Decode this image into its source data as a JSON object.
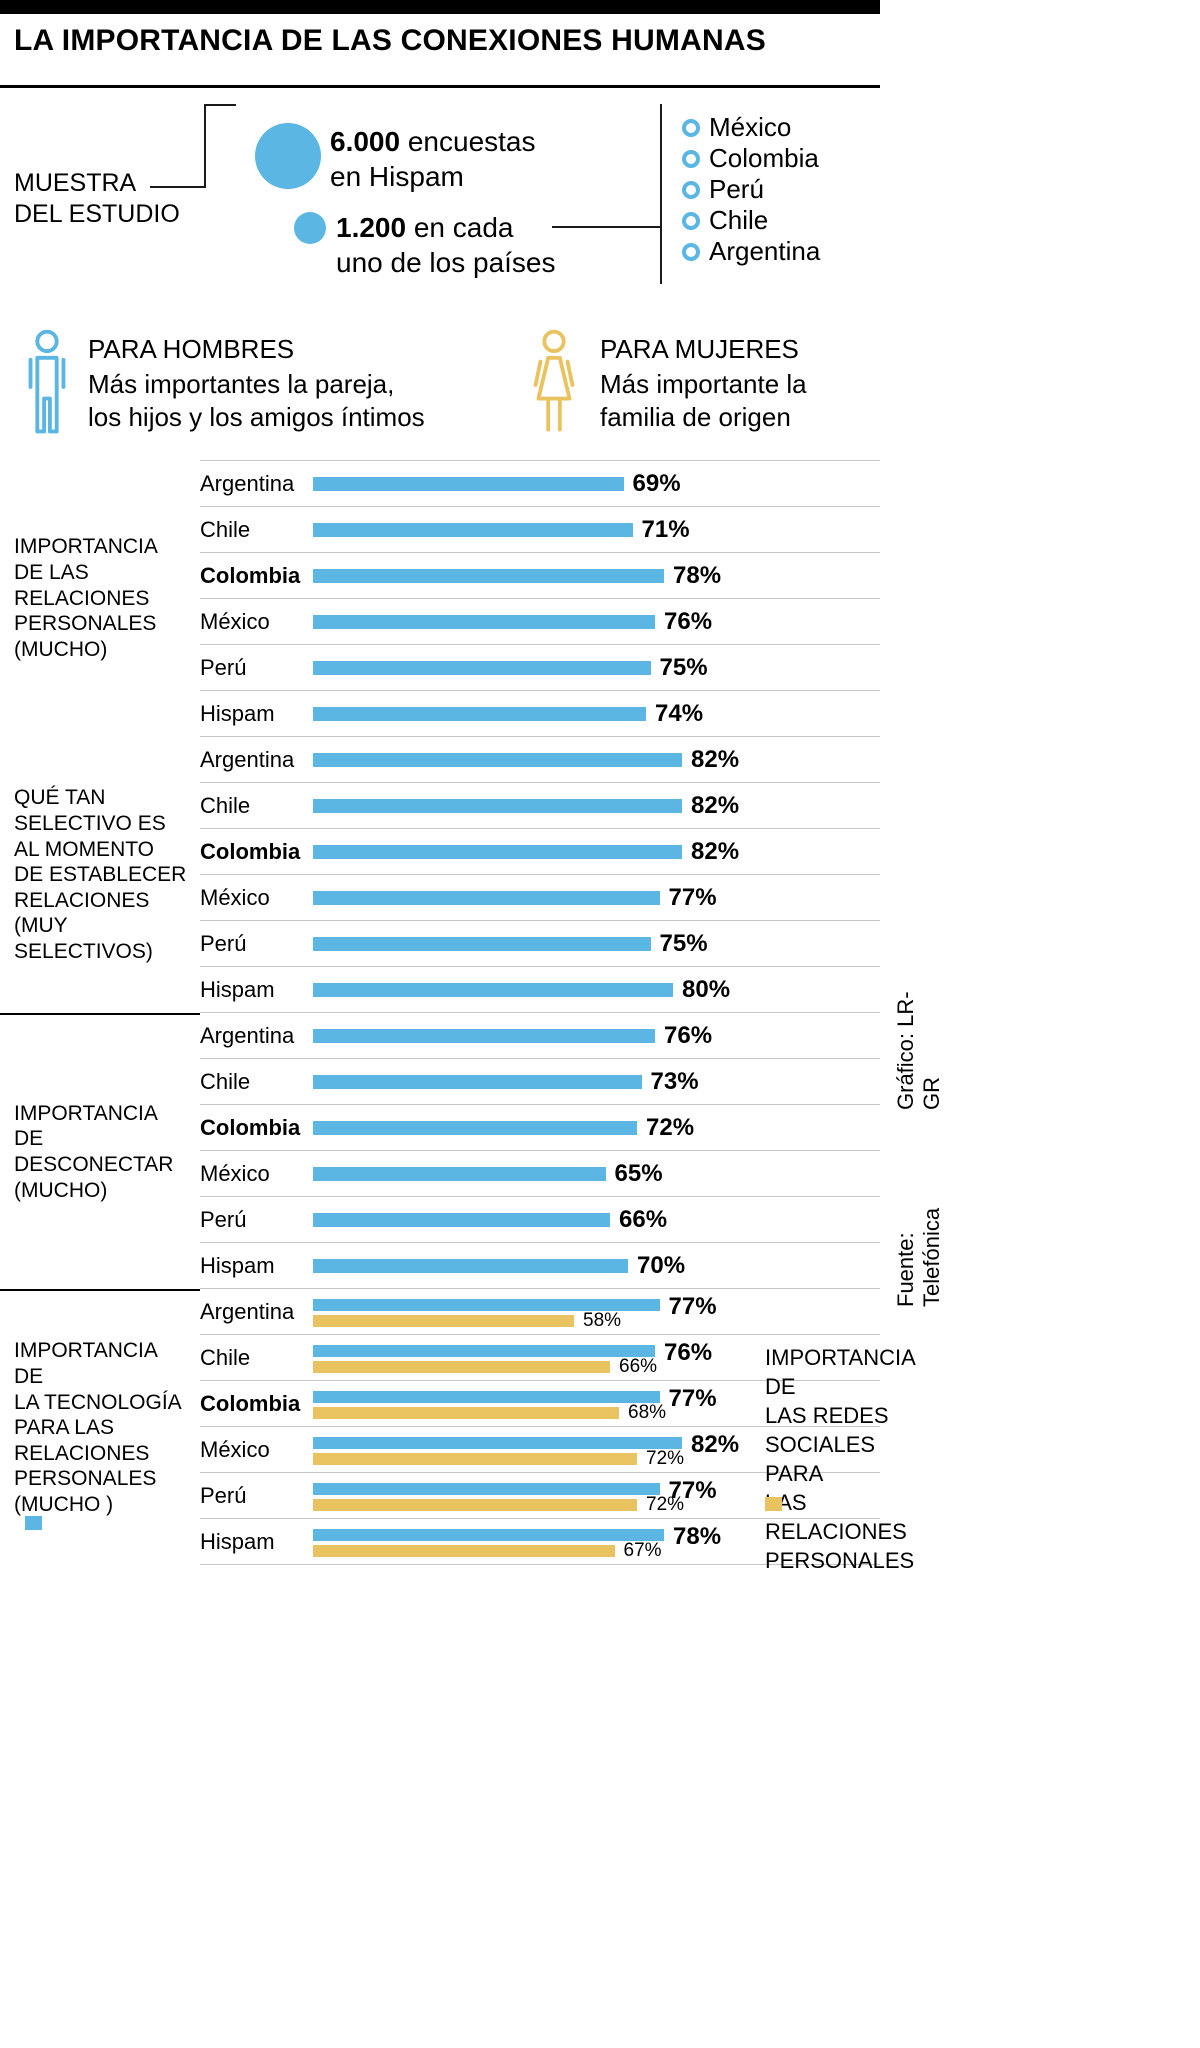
{
  "colors": {
    "blue": "#5bb6e4",
    "yellow": "#e8c35f"
  },
  "header": {
    "title": "LA IMPORTANCIA DE LAS CONEXIONES HUMANAS"
  },
  "sample": {
    "label": "MUESTRA\nDEL ESTUDIO",
    "stat1_value": "6.000",
    "stat1_text": " encuestas\nen Hispam",
    "stat2_value": "1.200",
    "stat2_text": " en cada\nuno de los países",
    "countries": [
      "México",
      "Colombia",
      "Perú",
      "Chile",
      "Argentina"
    ]
  },
  "gender": {
    "men_title": "PARA HOMBRES",
    "men_desc": "Más importantes la pareja,\nlos hijos y los amigos íntimos",
    "women_title": "PARA MUJERES",
    "women_desc": "Más importante la\nfamilia de origen"
  },
  "chart_data": {
    "type": "bar",
    "orientation": "horizontal",
    "unit": "%",
    "xlim": [
      0,
      100
    ],
    "bar_color": "#5bb6e4",
    "secondary_bar_color": "#e8c35f",
    "categories": [
      "Argentina",
      "Chile",
      "Colombia",
      "México",
      "Perú",
      "Hispam"
    ],
    "emphasized_category": "Colombia",
    "groups": [
      {
        "label": "IMPORTANCIA\nDE LAS\nRELACIONES\nPERSONALES\n(MUCHO)",
        "values": [
          69,
          71,
          78,
          76,
          75,
          74
        ]
      },
      {
        "label": "QUÉ TAN\nSELECTIVO ES\nAL MOMENTO\nDE ESTABLECER\nRELACIONES\n(MUY\nSELECTIVOS)",
        "values": [
          82,
          82,
          82,
          77,
          75,
          80
        ]
      },
      {
        "label": "IMPORTANCIA DE\nDESCONECTAR\n(MUCHO)",
        "values": [
          76,
          73,
          72,
          65,
          66,
          70
        ]
      },
      {
        "label": "IMPORTANCIA DE\nLA TECNOLOGÍA\nPARA LAS\nRELACIONES\nPERSONALES\n(MUCHO )",
        "values": [
          77,
          76,
          77,
          82,
          77,
          78
        ],
        "secondary_values": [
          58,
          66,
          68,
          72,
          72,
          67
        ]
      }
    ]
  },
  "legend": {
    "social_label": "IMPORTANCIA DE\nLAS REDES\nSOCIALES PARA\nLAS RELACIONES\nPERSONALES"
  },
  "credits": {
    "graphic": "Gráfico: LR-GR",
    "source": "Fuente: Telefónica"
  }
}
